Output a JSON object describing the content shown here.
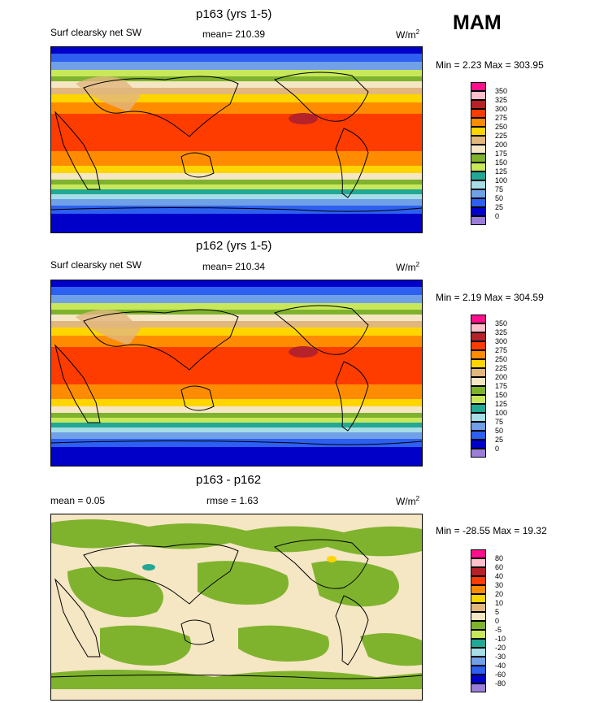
{
  "season": "MAM",
  "panels": [
    {
      "title": "p163 (yrs 1-5)",
      "left_label": "Surf clearsky net SW",
      "center_label": "mean= 210.39",
      "unit_base": "W/m",
      "unit_exp": "2",
      "minmax": "Min =   2.23 Max = 303.95",
      "colorbar_levels": [
        "350",
        "325",
        "300",
        "275",
        "250",
        "225",
        "200",
        "175",
        "150",
        "125",
        "100",
        "75",
        "50",
        "25",
        "0"
      ]
    },
    {
      "title": "p162 (yrs 1-5)",
      "left_label": "Surf clearsky net SW",
      "center_label": "mean= 210.34",
      "unit_base": "W/m",
      "unit_exp": "2",
      "minmax": "Min =   2.19 Max = 304.59",
      "colorbar_levels": [
        "350",
        "325",
        "300",
        "275",
        "250",
        "225",
        "200",
        "175",
        "150",
        "125",
        "100",
        "75",
        "50",
        "25",
        "0"
      ]
    },
    {
      "title": "p163 - p162",
      "left_label": "mean =   0.05",
      "center_label": "rmse =   1.63",
      "unit_base": "W/m",
      "unit_exp": "2",
      "minmax": "Min = -28.55 Max =  19.32",
      "colorbar_levels": [
        "80",
        "60",
        "40",
        "30",
        "20",
        "10",
        "5",
        "0",
        "-5",
        "-10",
        "-20",
        "-30",
        "-40",
        "-60",
        "-80"
      ]
    }
  ],
  "colors": {
    "abs_scale": [
      "#ff0f8c",
      "#ffc0cb",
      "#b5222a",
      "#ff3c00",
      "#ff8c00",
      "#ffd500",
      "#e1b77e",
      "#f5e6c4",
      "#7fb32e",
      "#c8e85a",
      "#22a895",
      "#a6dde6",
      "#6fa0e8",
      "#2d5ff0",
      "#0000c8",
      "#9b7ed8"
    ],
    "diff_scale": [
      "#ff0f8c",
      "#ffc0cb",
      "#b5222a",
      "#ff3c00",
      "#ff8c00",
      "#ffd500",
      "#e1b77e",
      "#f5e6c4",
      "#7fb32e",
      "#c8e85a",
      "#22a895",
      "#a6dde6",
      "#6fa0e8",
      "#2d5ff0",
      "#0000c8",
      "#9b7ed8"
    ]
  }
}
